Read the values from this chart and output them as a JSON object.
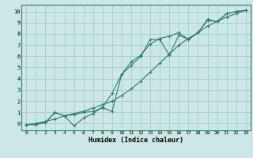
{
  "xlabel": "Humidex (Indice chaleur)",
  "ylabel": "",
  "bg_color": "#cce8e6",
  "grid_color": "#aacccc",
  "line_color": "#2d7d6e",
  "xlim": [
    -0.5,
    23.5
  ],
  "ylim": [
    -0.6,
    10.6
  ],
  "xticks": [
    0,
    1,
    2,
    3,
    4,
    5,
    6,
    7,
    8,
    9,
    10,
    11,
    12,
    13,
    14,
    15,
    16,
    17,
    18,
    19,
    20,
    21,
    22,
    23
  ],
  "yticks": [
    0,
    1,
    2,
    3,
    4,
    5,
    6,
    7,
    8,
    9,
    10
  ],
  "line1_x": [
    0,
    1,
    2,
    3,
    4,
    5,
    6,
    7,
    8,
    9,
    10,
    11,
    12,
    13,
    14,
    15,
    16,
    17,
    18,
    19,
    20,
    21,
    22,
    23
  ],
  "line1_y": [
    -0.1,
    -0.1,
    0.1,
    1.0,
    0.7,
    -0.2,
    0.5,
    0.9,
    1.5,
    2.7,
    4.4,
    5.2,
    6.0,
    7.5,
    7.5,
    6.1,
    7.9,
    7.5,
    8.1,
    9.3,
    9.1,
    9.8,
    10.0,
    10.1
  ],
  "line2_x": [
    0,
    2,
    3,
    4,
    5,
    6,
    7,
    8,
    9,
    10,
    11,
    12,
    13,
    14,
    15,
    16,
    17,
    18,
    19,
    20,
    21,
    22,
    23
  ],
  "line2_y": [
    -0.1,
    0.1,
    1.0,
    0.7,
    0.8,
    1.0,
    1.1,
    1.4,
    1.1,
    4.4,
    5.5,
    6.1,
    7.1,
    7.6,
    7.8,
    8.1,
    7.5,
    8.1,
    9.2,
    9.1,
    9.8,
    10.0,
    10.1
  ],
  "line3_x": [
    0,
    1,
    2,
    3,
    4,
    5,
    6,
    7,
    8,
    9,
    10,
    11,
    12,
    13,
    14,
    15,
    16,
    17,
    18,
    19,
    20,
    21,
    22,
    23
  ],
  "line3_y": [
    -0.1,
    0.0,
    0.2,
    0.4,
    0.7,
    0.9,
    1.1,
    1.4,
    1.7,
    2.0,
    2.5,
    3.1,
    3.8,
    4.6,
    5.4,
    6.2,
    7.0,
    7.6,
    8.1,
    8.7,
    9.1,
    9.5,
    9.8,
    10.1
  ]
}
